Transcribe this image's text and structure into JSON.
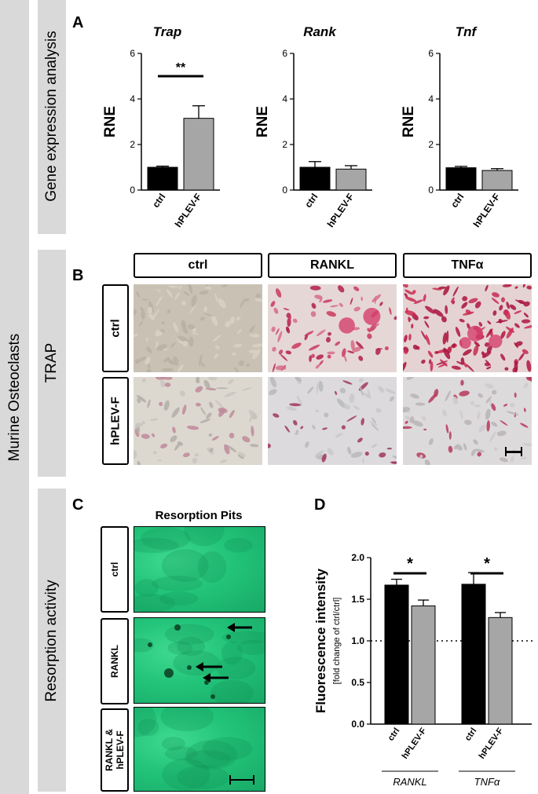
{
  "figure": {
    "side_label": "Murine Osteoclasts",
    "section_labels": {
      "gene": "Gene expression analysis",
      "trap": "TRAP",
      "resorption": "Resorption activity"
    },
    "panel_letters": {
      "a": "A",
      "b": "B",
      "c": "C",
      "d": "D"
    }
  },
  "panelB": {
    "columns": [
      "ctrl",
      "RANKL",
      "TNFα"
    ],
    "rows": [
      "ctrl",
      "hPLEV-F"
    ]
  },
  "panelC": {
    "title": "Resorption Pits",
    "rows": [
      "ctrl",
      "RANKL",
      "RANKL &",
      "hPLEV-F"
    ]
  },
  "chart_data": [
    {
      "type": "bar",
      "title": "Trap",
      "ylabel": "RNE",
      "categories": [
        "ctrl",
        "hPLEV-F"
      ],
      "values": [
        1.0,
        3.15
      ],
      "errors": [
        0.05,
        0.55
      ],
      "colors": [
        "#000000",
        "#a6a6a6"
      ],
      "ylim": [
        0,
        6
      ],
      "yticks": [
        "0",
        "2",
        "4",
        "6"
      ],
      "significance": "**"
    },
    {
      "type": "bar",
      "title": "Rank",
      "ylabel": "RNE",
      "categories": [
        "ctrl",
        "hPLEV-F"
      ],
      "values": [
        1.0,
        0.92
      ],
      "errors": [
        0.25,
        0.15
      ],
      "colors": [
        "#000000",
        "#a6a6a6"
      ],
      "ylim": [
        0,
        6
      ],
      "yticks": [
        "0",
        "2",
        "4",
        "6"
      ],
      "significance": ""
    },
    {
      "type": "bar",
      "title": "Tnf",
      "ylabel": "RNE",
      "categories": [
        "ctrl",
        "hPLEV-F"
      ],
      "values": [
        0.98,
        0.86
      ],
      "errors": [
        0.06,
        0.08
      ],
      "colors": [
        "#000000",
        "#a6a6a6"
      ],
      "ylim": [
        0,
        6
      ],
      "yticks": [
        "0",
        "2",
        "4",
        "6"
      ],
      "significance": ""
    },
    {
      "type": "bar",
      "ylabel": "Fluorescence intensity",
      "ylabel_sub": "[fold change of ctrl/ctrl]",
      "groups": [
        "RANKL",
        "TNFα"
      ],
      "categories": [
        "ctrl",
        "hPLEV-F",
        "ctrl",
        "hPLEV-F"
      ],
      "values": [
        1.67,
        1.42,
        1.68,
        1.28
      ],
      "errors": [
        0.07,
        0.07,
        0.14,
        0.06
      ],
      "colors": [
        "#000000",
        "#a6a6a6",
        "#000000",
        "#a6a6a6"
      ],
      "ylim": [
        0,
        2.0
      ],
      "yticks": [
        "0.0",
        "0.5",
        "1.0",
        "1.5",
        "2.0"
      ],
      "reference_line": 1.0,
      "significance": [
        "*",
        "*"
      ]
    }
  ]
}
